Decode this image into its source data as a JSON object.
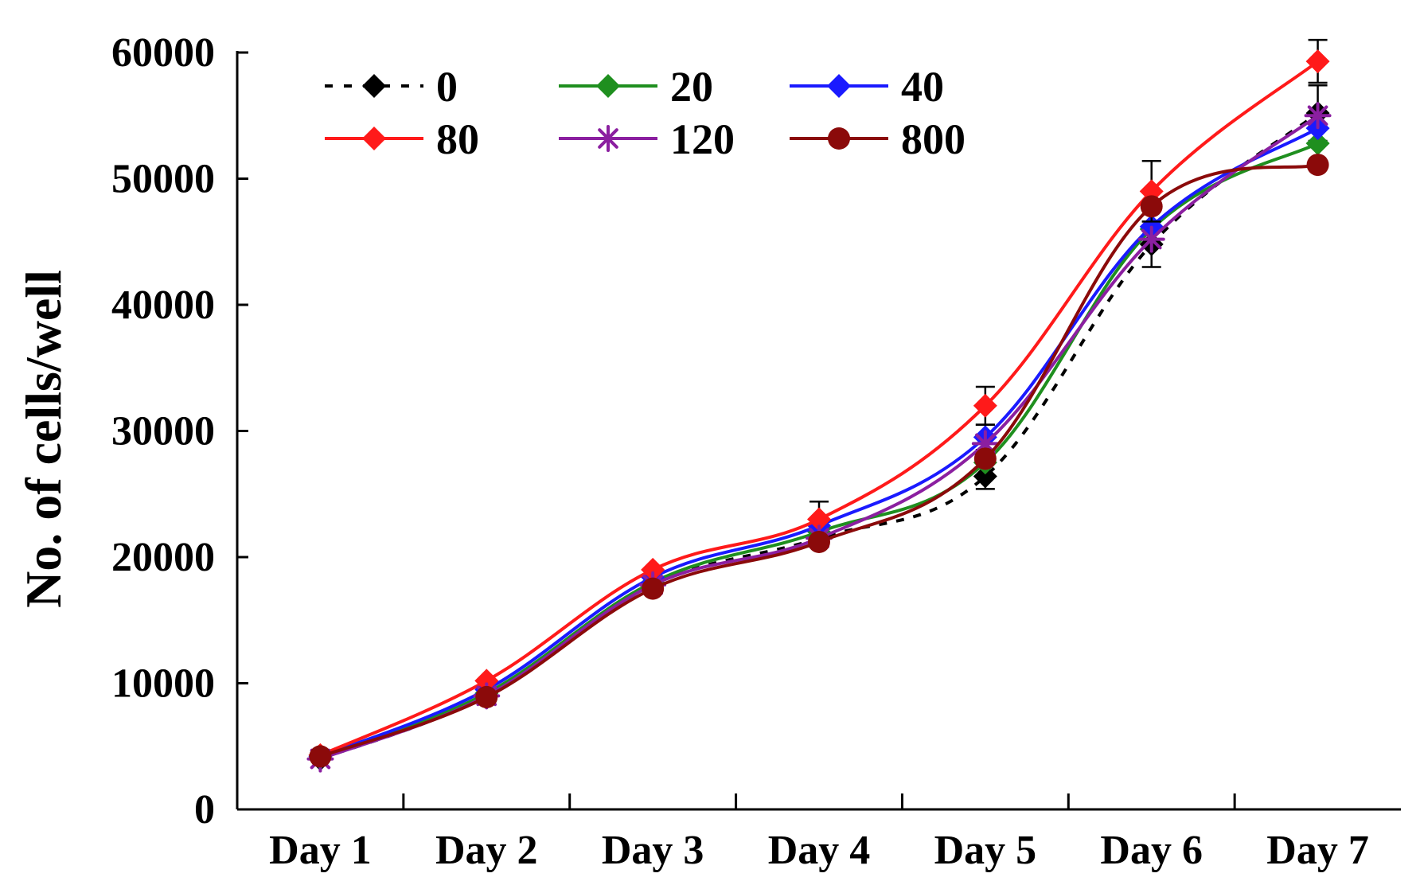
{
  "chart_data": {
    "type": "line",
    "title": "",
    "xlabel": "",
    "ylabel": "No. of cells/well",
    "ylim": [
      0,
      60000
    ],
    "yticks": [
      0,
      10000,
      20000,
      30000,
      40000,
      50000,
      60000
    ],
    "yticklabels": [
      "0",
      "10000",
      "20000",
      "30000",
      "40000",
      "50000",
      "60000"
    ],
    "categories": [
      "Day 1",
      "Day 2",
      "Day 3",
      "Day 4",
      "Day 5",
      "Day 6",
      "Day 7"
    ],
    "legend_position": "top-left",
    "series": [
      {
        "name": "0",
        "color": "#000000",
        "dash": true,
        "marker": "diamond",
        "values": [
          4000,
          9000,
          17800,
          21500,
          26400,
          44800,
          55200
        ],
        "errors": [
          0,
          0,
          0,
          0,
          1000,
          1800,
          2200
        ]
      },
      {
        "name": "20",
        "color": "#1f8f1f",
        "dash": false,
        "marker": "diamond",
        "values": [
          4100,
          9200,
          18000,
          22000,
          27500,
          46000,
          52800
        ],
        "errors": [
          0,
          0,
          0,
          0,
          0,
          0,
          0
        ]
      },
      {
        "name": "40",
        "color": "#1a1aff",
        "dash": false,
        "marker": "diamond",
        "values": [
          4200,
          9500,
          18400,
          22500,
          29500,
          46200,
          54000
        ],
        "errors": [
          0,
          0,
          0,
          0,
          1000,
          0,
          0
        ]
      },
      {
        "name": "80",
        "color": "#ff1a1a",
        "dash": false,
        "marker": "diamond",
        "values": [
          4300,
          10200,
          19000,
          23000,
          32000,
          49000,
          59300
        ],
        "errors": [
          0,
          0,
          0,
          1400,
          1500,
          2400,
          1700
        ]
      },
      {
        "name": "120",
        "color": "#8b1fa0",
        "dash": false,
        "marker": "star",
        "values": [
          4000,
          9000,
          17800,
          21500,
          29000,
          45200,
          55000
        ],
        "errors": [
          0,
          0,
          0,
          0,
          0,
          0,
          0
        ]
      },
      {
        "name": "800",
        "color": "#8b0a0a",
        "dash": false,
        "marker": "circle",
        "values": [
          4200,
          8900,
          17500,
          21200,
          27800,
          47800,
          51100
        ],
        "errors": [
          0,
          0,
          0,
          0,
          0,
          0,
          0
        ]
      }
    ]
  }
}
